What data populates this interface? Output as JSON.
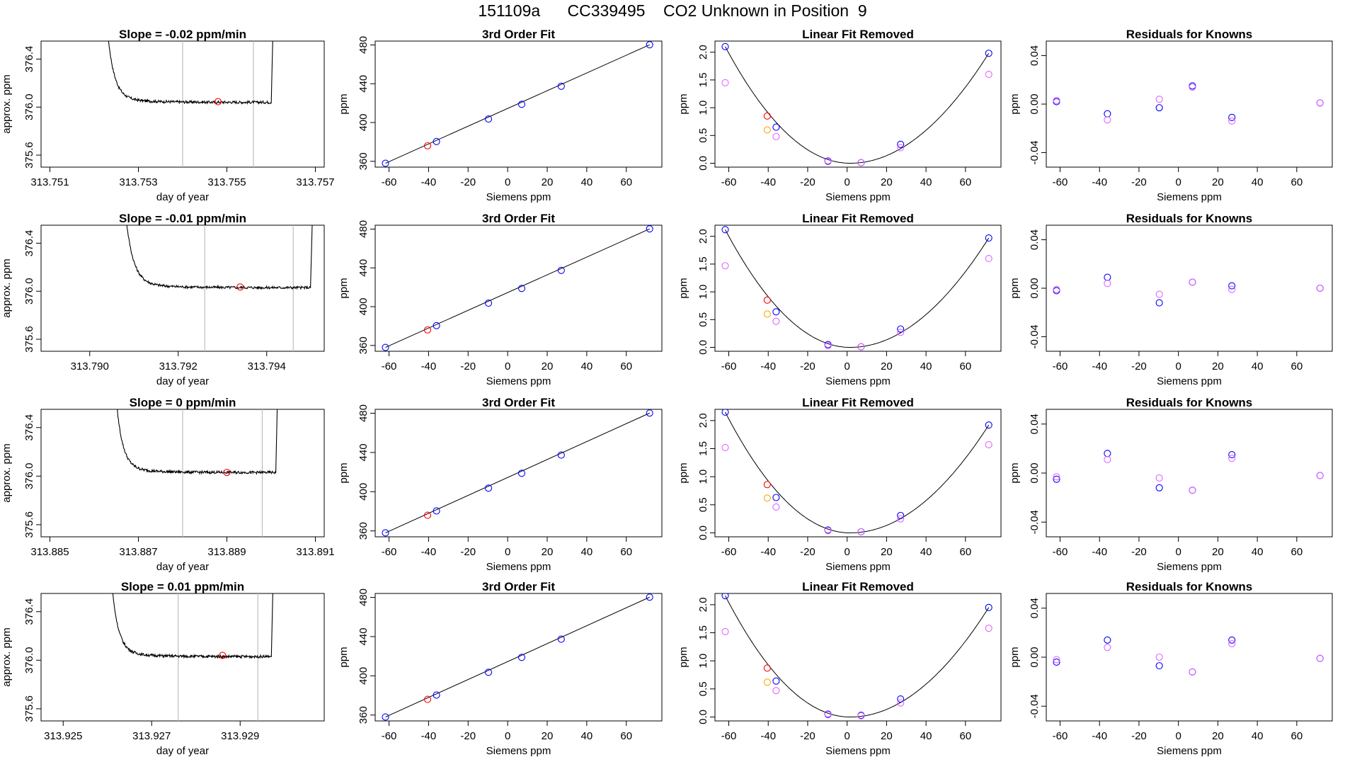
{
  "title": "151109a      CC339495    CO2 Unknown in Position  9",
  "colors": {
    "trace": "#000000",
    "window_lines": "#bebebe",
    "unknown_point": "#ff0000",
    "fit_curve": "#000000",
    "raw_point": "#0000ff",
    "secondary_point": "#e066ff",
    "unknown_curve_point": "#ffa500",
    "frame": "#000000"
  },
  "chart_data": [
    {
      "type": "line",
      "row": 0,
      "panel": "trace",
      "title": "Slope =  -0.02  ppm/min",
      "xlabel": "day of year",
      "ylabel": "approx. ppm",
      "xlim": [
        313.7508,
        313.7572
      ],
      "ylim": [
        375.5,
        376.55
      ],
      "x_ticks": [
        "313.751",
        "313.753",
        "313.755",
        "313.757"
      ],
      "y_ticks": [
        "375.6",
        "376.0",
        "376.4"
      ],
      "window": [
        313.754,
        313.7556
      ],
      "baseline": 376.04,
      "rise_start": 313.7522,
      "rise_end": 313.7561,
      "unknown_point": {
        "x": 313.7548,
        "y": 376.045
      }
    },
    {
      "type": "scatter",
      "row": 0,
      "panel": "fit",
      "title": "3rd Order Fit",
      "xlabel": "Siemens ppm",
      "ylabel": "ppm",
      "xlim": [
        -67,
        78
      ],
      "ylim": [
        354,
        484
      ],
      "x_ticks": [
        "-60",
        "-40",
        "-20",
        "0",
        "20",
        "40",
        "60"
      ],
      "y_ticks": [
        "360",
        "400",
        "440",
        "480"
      ],
      "points": [
        {
          "x": -61.8,
          "y": 358.0
        },
        {
          "x": -36.0,
          "y": 380.4
        },
        {
          "x": -9.7,
          "y": 403.6
        },
        {
          "x": 7.1,
          "y": 418.8
        },
        {
          "x": 27.1,
          "y": 437.4
        },
        {
          "x": 71.8,
          "y": 480.2
        }
      ],
      "unknown_point": {
        "x": -40.5,
        "y": 376.0
      }
    },
    {
      "type": "scatter",
      "row": 0,
      "panel": "linear_removed",
      "title": "Linear Fit Removed",
      "xlabel": "Siemens ppm",
      "ylabel": "ppm",
      "xlim": [
        -67,
        78
      ],
      "ylim": [
        -0.07,
        2.2
      ],
      "x_ticks": [
        "-60",
        "-40",
        "-20",
        "0",
        "20",
        "40",
        "60"
      ],
      "y_ticks": [
        "0.0",
        "0.5",
        "1.0",
        "1.5",
        "2.0"
      ],
      "series": [
        {
          "values": [
            [
              -61.8,
              2.1
            ],
            [
              -36.0,
              0.65
            ],
            [
              -9.7,
              0.04
            ],
            [
              7.1,
              0.01
            ],
            [
              27.1,
              0.34
            ],
            [
              71.8,
              1.98
            ]
          ]
        },
        {
          "values": [
            [
              -61.8,
              1.45
            ],
            [
              -36.0,
              0.48
            ],
            [
              -9.7,
              0.03
            ],
            [
              7.1,
              0.01
            ],
            [
              27.1,
              0.28
            ],
            [
              71.8,
              1.6
            ]
          ]
        },
        {
          "values": [
            [
              -40.5,
              0.85
            ]
          ]
        },
        {
          "values": [
            [
              -40.5,
              0.6
            ]
          ]
        }
      ]
    },
    {
      "type": "scatter",
      "row": 0,
      "panel": "residuals",
      "title": "Residuals for Knowns",
      "xlabel": "Siemens ppm",
      "ylabel": "ppm",
      "xlim": [
        -67,
        78
      ],
      "ylim": [
        -0.052,
        0.052
      ],
      "x_ticks": [
        "-60",
        "-40",
        "-20",
        "0",
        "20",
        "40",
        "60"
      ],
      "y_ticks": [
        "-0.04",
        "0.00",
        "0.04"
      ],
      "series": [
        {
          "values": [
            [
              -61.8,
              0.002
            ],
            [
              -36.0,
              -0.008
            ],
            [
              -9.7,
              -0.003
            ],
            [
              7.1,
              0.015
            ],
            [
              27.1,
              -0.011
            ],
            [
              71.8,
              0.001
            ]
          ]
        },
        {
          "values": [
            [
              -61.8,
              0.003
            ],
            [
              -36.0,
              -0.013
            ],
            [
              -9.7,
              0.004
            ],
            [
              7.1,
              0.014
            ],
            [
              27.1,
              -0.014
            ],
            [
              71.8,
              0.001
            ]
          ]
        }
      ]
    },
    {
      "type": "line",
      "row": 1,
      "panel": "trace",
      "title": "Slope =  -0.01  ppm/min",
      "xlabel": "day of year",
      "ylabel": "approx. ppm",
      "xlim": [
        313.7889,
        313.7953
      ],
      "ylim": [
        375.5,
        376.55
      ],
      "x_ticks": [
        "313.790",
        "313.792",
        "313.794"
      ],
      "y_ticks": [
        "375.6",
        "376.0",
        "376.4"
      ],
      "window": [
        313.7926,
        313.7946
      ],
      "baseline": 376.03,
      "rise_start": 313.7907,
      "rise_end": 313.7951,
      "unknown_point": {
        "x": 313.7934,
        "y": 376.035
      }
    },
    {
      "type": "scatter",
      "row": 1,
      "panel": "fit",
      "title": "3rd Order Fit",
      "xlabel": "Siemens ppm",
      "ylabel": "ppm",
      "xlim": [
        -67,
        78
      ],
      "ylim": [
        354,
        484
      ],
      "x_ticks": [
        "-60",
        "-40",
        "-20",
        "0",
        "20",
        "40",
        "60"
      ],
      "y_ticks": [
        "360",
        "400",
        "440",
        "480"
      ],
      "points": [
        {
          "x": -61.8,
          "y": 358.0
        },
        {
          "x": -36.0,
          "y": 380.4
        },
        {
          "x": -9.7,
          "y": 403.6
        },
        {
          "x": 7.1,
          "y": 418.8
        },
        {
          "x": 27.1,
          "y": 437.4
        },
        {
          "x": 71.8,
          "y": 480.2
        }
      ],
      "unknown_point": {
        "x": -40.5,
        "y": 376.0
      }
    },
    {
      "type": "scatter",
      "row": 1,
      "panel": "linear_removed",
      "title": "Linear Fit Removed",
      "xlabel": "Siemens ppm",
      "ylabel": "ppm",
      "xlim": [
        -67,
        78
      ],
      "ylim": [
        -0.07,
        2.2
      ],
      "x_ticks": [
        "-60",
        "-40",
        "-20",
        "0",
        "20",
        "40",
        "60"
      ],
      "y_ticks": [
        "0.0",
        "0.5",
        "1.0",
        "1.5",
        "2.0"
      ],
      "series": [
        {
          "values": [
            [
              -61.8,
              2.12
            ],
            [
              -36.0,
              0.64
            ],
            [
              -9.7,
              0.05
            ],
            [
              7.1,
              0.01
            ],
            [
              27.1,
              0.33
            ],
            [
              71.8,
              1.97
            ]
          ]
        },
        {
          "values": [
            [
              -61.8,
              1.47
            ],
            [
              -36.0,
              0.47
            ],
            [
              -9.7,
              0.03
            ],
            [
              7.1,
              0.01
            ],
            [
              27.1,
              0.27
            ],
            [
              71.8,
              1.6
            ]
          ]
        },
        {
          "values": [
            [
              -40.5,
              0.85
            ]
          ]
        },
        {
          "values": [
            [
              -40.5,
              0.6
            ]
          ]
        }
      ]
    },
    {
      "type": "scatter",
      "row": 1,
      "panel": "residuals",
      "title": "Residuals for Knowns",
      "xlabel": "Siemens ppm",
      "ylabel": "ppm",
      "xlim": [
        -67,
        78
      ],
      "ylim": [
        -0.052,
        0.052
      ],
      "x_ticks": [
        "-60",
        "-40",
        "-20",
        "0",
        "20",
        "40",
        "60"
      ],
      "y_ticks": [
        "-0.04",
        "0.00",
        "0.04"
      ],
      "series": [
        {
          "values": [
            [
              -61.8,
              -0.002
            ],
            [
              -36.0,
              0.009
            ],
            [
              -9.7,
              -0.012
            ],
            [
              7.1,
              0.005
            ],
            [
              27.1,
              0.002
            ],
            [
              71.8,
              0.0
            ]
          ]
        },
        {
          "values": [
            [
              -61.8,
              -0.001
            ],
            [
              -36.0,
              0.004
            ],
            [
              -9.7,
              -0.005
            ],
            [
              7.1,
              0.005
            ],
            [
              27.1,
              -0.001
            ],
            [
              71.8,
              0.0
            ]
          ]
        }
      ]
    },
    {
      "type": "line",
      "row": 2,
      "panel": "trace",
      "title": "Slope =  0  ppm/min",
      "xlabel": "day of year",
      "ylabel": "approx. ppm",
      "xlim": [
        313.8848,
        313.8912
      ],
      "ylim": [
        375.5,
        376.55
      ],
      "x_ticks": [
        "313.885",
        "313.887",
        "313.889",
        "313.891"
      ],
      "y_ticks": [
        "375.6",
        "376.0",
        "376.4"
      ],
      "window": [
        313.888,
        313.8898
      ],
      "baseline": 376.03,
      "rise_start": 313.8864,
      "rise_end": 313.8902,
      "unknown_point": {
        "x": 313.889,
        "y": 376.03
      }
    },
    {
      "type": "scatter",
      "row": 2,
      "panel": "fit",
      "title": "3rd Order Fit",
      "xlabel": "Siemens ppm",
      "ylabel": "ppm",
      "xlim": [
        -67,
        78
      ],
      "ylim": [
        354,
        484
      ],
      "x_ticks": [
        "-60",
        "-40",
        "-20",
        "0",
        "20",
        "40",
        "60"
      ],
      "y_ticks": [
        "360",
        "400",
        "440",
        "480"
      ],
      "points": [
        {
          "x": -61.8,
          "y": 358.0
        },
        {
          "x": -36.0,
          "y": 380.4
        },
        {
          "x": -9.7,
          "y": 403.6
        },
        {
          "x": 7.1,
          "y": 418.8
        },
        {
          "x": 27.1,
          "y": 437.4
        },
        {
          "x": 71.8,
          "y": 480.2
        }
      ],
      "unknown_point": {
        "x": -40.5,
        "y": 376.0
      }
    },
    {
      "type": "scatter",
      "row": 2,
      "panel": "linear_removed",
      "title": "Linear Fit Removed",
      "xlabel": "Siemens ppm",
      "ylabel": "ppm",
      "xlim": [
        -67,
        78
      ],
      "ylim": [
        -0.07,
        2.2
      ],
      "x_ticks": [
        "-60",
        "-40",
        "-20",
        "0",
        "20",
        "40",
        "60"
      ],
      "y_ticks": [
        "0.0",
        "0.5",
        "1.0",
        "1.5",
        "2.0"
      ],
      "series": [
        {
          "values": [
            [
              -61.8,
              2.15
            ],
            [
              -36.0,
              0.63
            ],
            [
              -9.7,
              0.05
            ],
            [
              7.1,
              0.02
            ],
            [
              27.1,
              0.31
            ],
            [
              71.8,
              1.92
            ]
          ]
        },
        {
          "values": [
            [
              -61.8,
              1.52
            ],
            [
              -36.0,
              0.46
            ],
            [
              -9.7,
              0.04
            ],
            [
              7.1,
              0.02
            ],
            [
              27.1,
              0.25
            ],
            [
              71.8,
              1.57
            ]
          ]
        },
        {
          "values": [
            [
              -40.5,
              0.86
            ]
          ]
        },
        {
          "values": [
            [
              -40.5,
              0.62
            ]
          ]
        }
      ]
    },
    {
      "type": "scatter",
      "row": 2,
      "panel": "residuals",
      "title": "Residuals for Knowns",
      "xlabel": "Siemens ppm",
      "ylabel": "ppm",
      "xlim": [
        -67,
        78
      ],
      "ylim": [
        -0.052,
        0.052
      ],
      "x_ticks": [
        "-60",
        "-40",
        "-20",
        "0",
        "20",
        "40",
        "60"
      ],
      "y_ticks": [
        "-0.04",
        "0.00",
        "0.04"
      ],
      "series": [
        {
          "values": [
            [
              -61.8,
              -0.005
            ],
            [
              -36.0,
              0.016
            ],
            [
              -9.7,
              -0.012
            ],
            [
              7.1,
              -0.014
            ],
            [
              27.1,
              0.015
            ],
            [
              71.8,
              -0.002
            ]
          ]
        },
        {
          "values": [
            [
              -61.8,
              -0.003
            ],
            [
              -36.0,
              0.011
            ],
            [
              -9.7,
              -0.004
            ],
            [
              7.1,
              -0.014
            ],
            [
              27.1,
              0.012
            ],
            [
              71.8,
              -0.002
            ]
          ]
        }
      ]
    },
    {
      "type": "line",
      "row": 3,
      "panel": "trace",
      "title": "Slope =  0.01  ppm/min",
      "xlabel": "day of year",
      "ylabel": "approx. ppm",
      "xlim": [
        313.9245,
        313.9309
      ],
      "ylim": [
        375.5,
        376.55
      ],
      "x_ticks": [
        "313.925",
        "313.927",
        "313.929"
      ],
      "y_ticks": [
        "375.6",
        "376.0",
        "376.4"
      ],
      "window": [
        313.9276,
        313.9294
      ],
      "baseline": 376.03,
      "rise_start": 313.926,
      "rise_end": 313.9298,
      "unknown_point": {
        "x": 313.9286,
        "y": 376.04
      }
    },
    {
      "type": "scatter",
      "row": 3,
      "panel": "fit",
      "title": "3rd Order Fit",
      "xlabel": "Siemens ppm",
      "ylabel": "ppm",
      "xlim": [
        -67,
        78
      ],
      "ylim": [
        354,
        484
      ],
      "x_ticks": [
        "-60",
        "-40",
        "-20",
        "0",
        "20",
        "40",
        "60"
      ],
      "y_ticks": [
        "360",
        "400",
        "440",
        "480"
      ],
      "points": [
        {
          "x": -61.8,
          "y": 358.0
        },
        {
          "x": -36.0,
          "y": 380.4
        },
        {
          "x": -9.7,
          "y": 403.6
        },
        {
          "x": 7.1,
          "y": 418.8
        },
        {
          "x": 27.1,
          "y": 437.4
        },
        {
          "x": 71.8,
          "y": 480.2
        }
      ],
      "unknown_point": {
        "x": -40.5,
        "y": 376.0
      }
    },
    {
      "type": "scatter",
      "row": 3,
      "panel": "linear_removed",
      "title": "Linear Fit Removed",
      "xlabel": "Siemens ppm",
      "ylabel": "ppm",
      "xlim": [
        -67,
        78
      ],
      "ylim": [
        -0.07,
        2.2
      ],
      "x_ticks": [
        "-60",
        "-40",
        "-20",
        "0",
        "20",
        "40",
        "60"
      ],
      "y_ticks": [
        "0.0",
        "0.5",
        "1.0",
        "1.5",
        "2.0"
      ],
      "series": [
        {
          "values": [
            [
              -61.8,
              2.16
            ],
            [
              -36.0,
              0.64
            ],
            [
              -9.7,
              0.05
            ],
            [
              7.1,
              0.03
            ],
            [
              27.1,
              0.32
            ],
            [
              71.8,
              1.95
            ]
          ]
        },
        {
          "values": [
            [
              -61.8,
              1.52
            ],
            [
              -36.0,
              0.47
            ],
            [
              -9.7,
              0.04
            ],
            [
              7.1,
              0.02
            ],
            [
              27.1,
              0.25
            ],
            [
              71.8,
              1.58
            ]
          ]
        },
        {
          "values": [
            [
              -40.5,
              0.87
            ]
          ]
        },
        {
          "values": [
            [
              -40.5,
              0.62
            ]
          ]
        }
      ]
    },
    {
      "type": "scatter",
      "row": 3,
      "panel": "residuals",
      "title": "Residuals for Knowns",
      "xlabel": "Siemens ppm",
      "ylabel": "ppm",
      "xlim": [
        -67,
        78
      ],
      "ylim": [
        -0.052,
        0.052
      ],
      "x_ticks": [
        "-60",
        "-40",
        "-20",
        "0",
        "20",
        "40",
        "60"
      ],
      "y_ticks": [
        "-0.04",
        "0.00",
        "0.04"
      ],
      "series": [
        {
          "values": [
            [
              -61.8,
              -0.004
            ],
            [
              -36.0,
              0.014
            ],
            [
              -9.7,
              -0.007
            ],
            [
              7.1,
              -0.012
            ],
            [
              27.1,
              0.014
            ],
            [
              71.8,
              -0.001
            ]
          ]
        },
        {
          "values": [
            [
              -61.8,
              -0.002
            ],
            [
              -36.0,
              0.008
            ],
            [
              -9.7,
              0.0
            ],
            [
              7.1,
              -0.012
            ],
            [
              27.1,
              0.011
            ],
            [
              71.8,
              -0.001
            ]
          ]
        }
      ]
    }
  ]
}
